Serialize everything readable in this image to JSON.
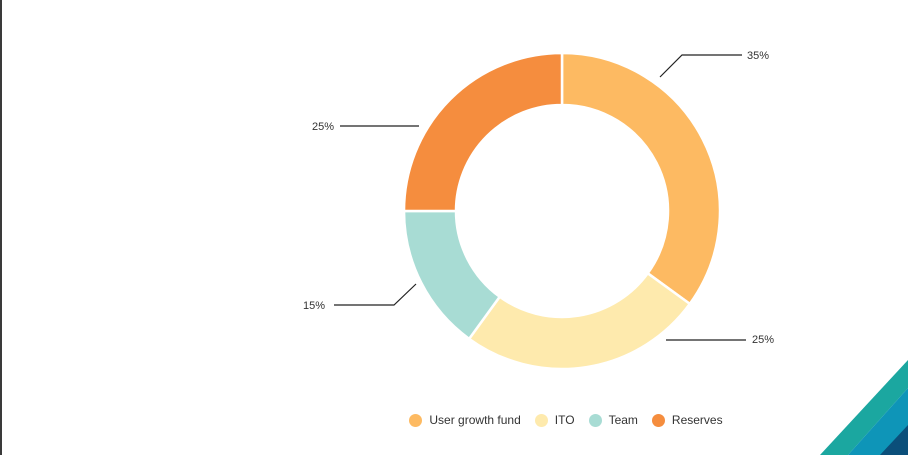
{
  "chart_data": {
    "type": "pie",
    "variant": "donut",
    "categories": [
      "User growth fund",
      "ITO",
      "Team",
      "Reserves"
    ],
    "values": [
      35,
      25,
      15,
      25
    ],
    "value_labels": [
      "35%",
      "25%",
      "15%",
      "25%"
    ],
    "colors": [
      "#FDBA62",
      "#FEEAAD",
      "#A8DCD4",
      "#F58D3E"
    ],
    "title": "",
    "legend_position": "bottom-center"
  },
  "decoration": {
    "accent_colors": [
      "#1BA7A0",
      "#0E95B8",
      "#0B4F7A"
    ]
  }
}
